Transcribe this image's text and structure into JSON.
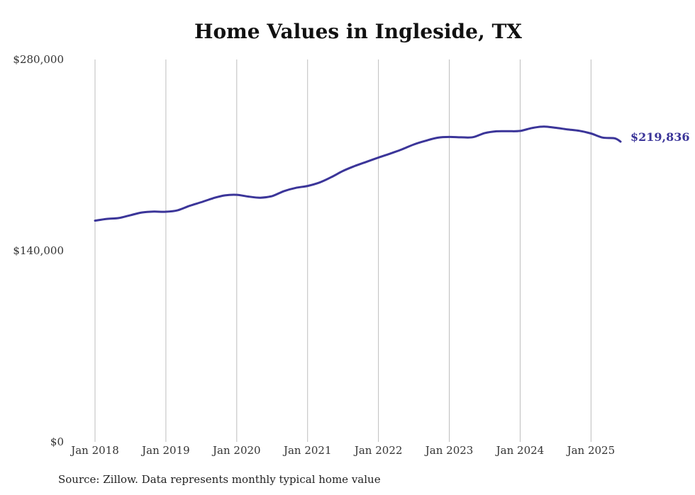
{
  "chart_data": {
    "type": "line",
    "title": "Home Values in Ingleside, TX",
    "source": "Source: Zillow. Data represents monthly typical home value",
    "line_color": "#3b3599",
    "grid_color": "#bdbdbd",
    "yticks": [
      {
        "value": 0,
        "label": "$0"
      },
      {
        "value": 140000,
        "label": "$140,000"
      },
      {
        "value": 280000,
        "label": "$280,000"
      }
    ],
    "ylim": [
      0,
      280000
    ],
    "xticks": [
      {
        "date": "2018-01",
        "label": "Jan 2018"
      },
      {
        "date": "2019-01",
        "label": "Jan 2019"
      },
      {
        "date": "2020-01",
        "label": "Jan 2020"
      },
      {
        "date": "2021-01",
        "label": "Jan 2021"
      },
      {
        "date": "2022-01",
        "label": "Jan 2022"
      },
      {
        "date": "2023-01",
        "label": "Jan 2023"
      },
      {
        "date": "2024-01",
        "label": "Jan 2024"
      },
      {
        "date": "2025-01",
        "label": "Jan 2025"
      }
    ],
    "xlim": [
      "2018-01",
      "2025-06"
    ],
    "end_label": "$219,836",
    "series": [
      {
        "x": [
          "2018-01",
          "2018-03",
          "2018-05",
          "2018-07",
          "2018-09",
          "2018-11",
          "2019-01",
          "2019-03",
          "2019-05",
          "2019-07",
          "2019-09",
          "2019-11",
          "2020-01",
          "2020-03",
          "2020-05",
          "2020-07",
          "2020-09",
          "2020-11",
          "2021-01",
          "2021-03",
          "2021-05",
          "2021-07",
          "2021-09",
          "2021-11",
          "2022-01",
          "2022-03",
          "2022-05",
          "2022-07",
          "2022-09",
          "2022-11",
          "2023-01",
          "2023-03",
          "2023-05",
          "2023-07",
          "2023-09",
          "2023-11",
          "2024-01",
          "2024-03",
          "2024-05",
          "2024-07",
          "2024-09",
          "2024-11",
          "2025-01",
          "2025-03",
          "2025-05",
          "2025-06"
        ],
        "values": [
          162000,
          163300,
          163900,
          166000,
          168000,
          168600,
          168500,
          169600,
          172800,
          175500,
          178400,
          180500,
          180900,
          179600,
          178800,
          180000,
          183600,
          186000,
          187400,
          189900,
          193800,
          198400,
          202000,
          205100,
          208200,
          211100,
          214200,
          217800,
          220500,
          222700,
          223300,
          223000,
          223100,
          226100,
          227400,
          227500,
          227700,
          229800,
          230900,
          230000,
          228800,
          227800,
          225800,
          222800,
          222300,
          219836
        ]
      }
    ]
  }
}
